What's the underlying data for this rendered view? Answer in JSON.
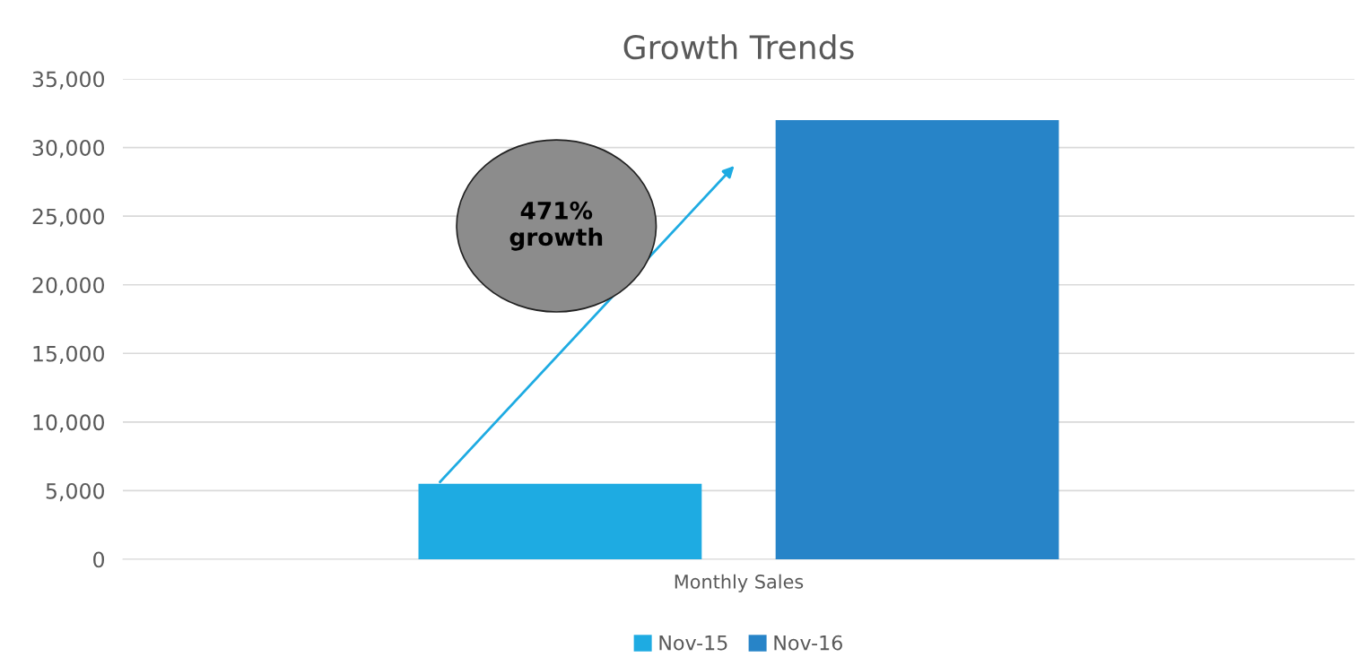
{
  "chart_data": {
    "type": "bar",
    "title": "Growth Trends",
    "categories": [
      "Monthly Sales"
    ],
    "series": [
      {
        "name": "Nov-15",
        "color": "#1eabe2",
        "values": [
          5500
        ]
      },
      {
        "name": "Nov-16",
        "color": "#2784c8",
        "values": [
          32000
        ]
      }
    ],
    "ylim": [
      0,
      35000
    ],
    "yticks": [
      {
        "value": 0,
        "label": "0"
      },
      {
        "value": 5000,
        "label": "5,000"
      },
      {
        "value": 10000,
        "label": "10,000"
      },
      {
        "value": 15000,
        "label": "15,000"
      },
      {
        "value": 20000,
        "label": "20,000"
      },
      {
        "value": 25000,
        "label": "25,000"
      },
      {
        "value": 30000,
        "label": "30,000"
      },
      {
        "value": 35000,
        "label": "35,000"
      }
    ],
    "grid": "y",
    "legend": "bottom",
    "annotations": [
      "471%\ngrowth"
    ]
  }
}
